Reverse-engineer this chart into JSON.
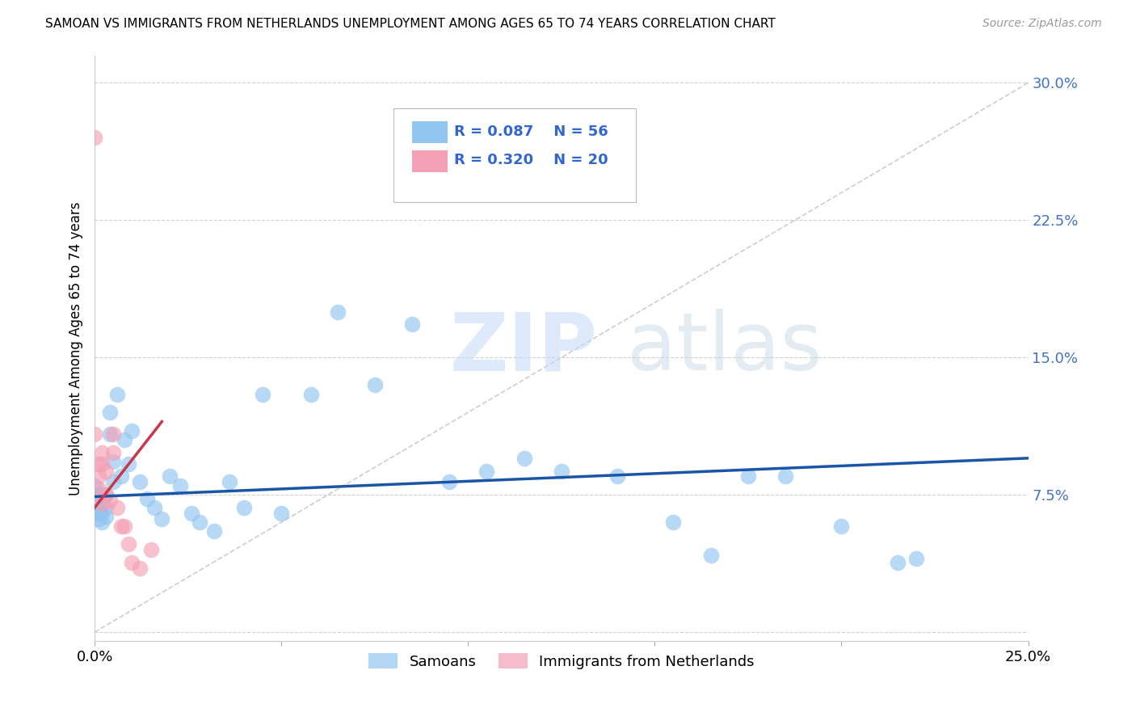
{
  "title": "SAMOAN VS IMMIGRANTS FROM NETHERLANDS UNEMPLOYMENT AMONG AGES 65 TO 74 YEARS CORRELATION CHART",
  "source": "Source: ZipAtlas.com",
  "ylabel": "Unemployment Among Ages 65 to 74 years",
  "xlim": [
    0.0,
    0.25
  ],
  "ylim": [
    -0.005,
    0.315
  ],
  "yticks_right": [
    0.0,
    0.075,
    0.15,
    0.225,
    0.3
  ],
  "ytick_labels_right": [
    "",
    "7.5%",
    "15.0%",
    "22.5%",
    "30.0%"
  ],
  "xtick_positions": [
    0.0,
    0.05,
    0.1,
    0.15,
    0.2,
    0.25
  ],
  "xtick_labels": [
    "0.0%",
    "",
    "",
    "",
    "",
    "25.0%"
  ],
  "legend_blue_r": "R = 0.087",
  "legend_blue_n": "N = 56",
  "legend_pink_r": "R = 0.320",
  "legend_pink_n": "N = 20",
  "legend_label_blue": "Samoans",
  "legend_label_pink": "Immigrants from Netherlands",
  "blue_color": "#92C5F0",
  "pink_color": "#F4A0B5",
  "trend_blue_color": "#1A56A8",
  "trend_pink_color": "#C8384A",
  "ref_line_color": "#C8C8C8",
  "samoans_x": [
    0.0,
    0.0,
    0.0,
    0.0,
    0.0,
    0.0,
    0.001,
    0.001,
    0.001,
    0.001,
    0.001,
    0.002,
    0.002,
    0.002,
    0.002,
    0.003,
    0.003,
    0.003,
    0.004,
    0.004,
    0.005,
    0.005,
    0.006,
    0.007,
    0.008,
    0.009,
    0.01,
    0.012,
    0.014,
    0.016,
    0.018,
    0.02,
    0.023,
    0.026,
    0.028,
    0.032,
    0.036,
    0.04,
    0.045,
    0.05,
    0.058,
    0.065,
    0.075,
    0.085,
    0.095,
    0.105,
    0.115,
    0.125,
    0.14,
    0.155,
    0.165,
    0.175,
    0.185,
    0.2,
    0.215,
    0.22
  ],
  "samoans_y": [
    0.08,
    0.075,
    0.075,
    0.07,
    0.068,
    0.065,
    0.075,
    0.07,
    0.068,
    0.065,
    0.062,
    0.075,
    0.07,
    0.065,
    0.06,
    0.075,
    0.068,
    0.063,
    0.12,
    0.108,
    0.093,
    0.082,
    0.13,
    0.085,
    0.105,
    0.092,
    0.11,
    0.082,
    0.073,
    0.068,
    0.062,
    0.085,
    0.08,
    0.065,
    0.06,
    0.055,
    0.082,
    0.068,
    0.13,
    0.065,
    0.13,
    0.175,
    0.135,
    0.168,
    0.082,
    0.088,
    0.095,
    0.088,
    0.085,
    0.06,
    0.042,
    0.085,
    0.085,
    0.058,
    0.038,
    0.04
  ],
  "netherlands_x": [
    0.0,
    0.0,
    0.001,
    0.001,
    0.001,
    0.002,
    0.002,
    0.002,
    0.003,
    0.003,
    0.004,
    0.005,
    0.005,
    0.006,
    0.007,
    0.008,
    0.009,
    0.01,
    0.012,
    0.015
  ],
  "netherlands_y": [
    0.27,
    0.108,
    0.092,
    0.085,
    0.078,
    0.098,
    0.092,
    0.07,
    0.088,
    0.075,
    0.072,
    0.108,
    0.098,
    0.068,
    0.058,
    0.058,
    0.048,
    0.038,
    0.035,
    0.045
  ],
  "blue_trend_x": [
    0.0,
    0.25
  ],
  "blue_trend_y": [
    0.074,
    0.095
  ],
  "pink_trend_x": [
    0.0,
    0.018
  ],
  "pink_trend_y": [
    0.068,
    0.115
  ],
  "ref_line_x": [
    0.0,
    0.25
  ],
  "ref_line_y": [
    0.0,
    0.3
  ]
}
